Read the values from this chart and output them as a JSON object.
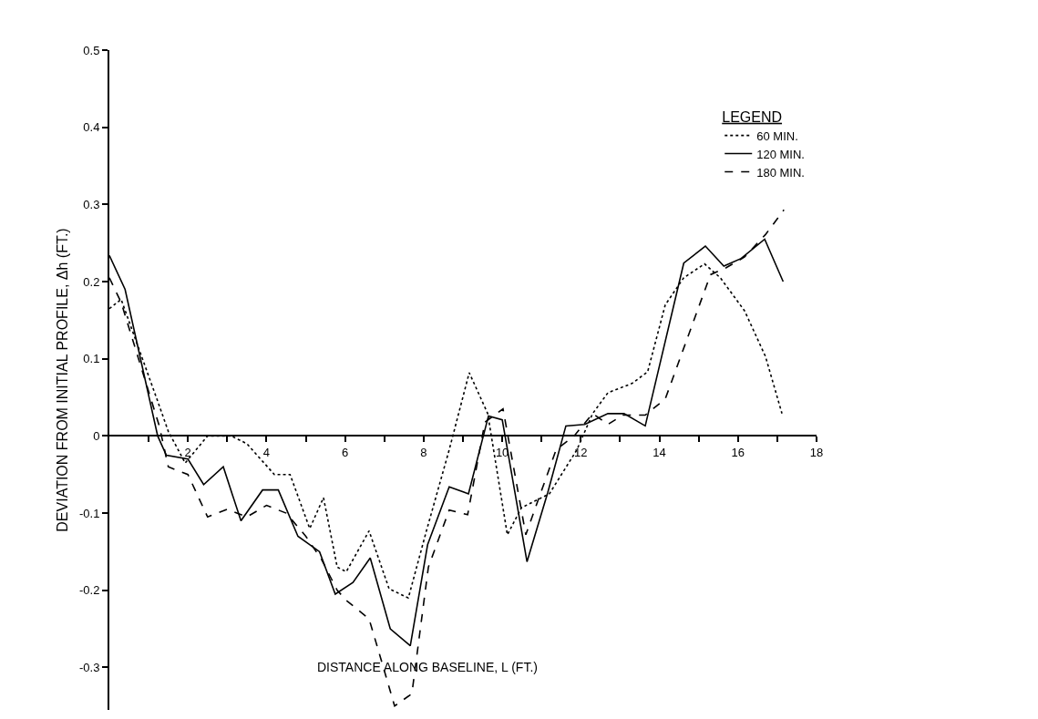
{
  "chart_data": {
    "type": "line",
    "xlabel": "DISTANCE ALONG BASELINE, L (FT.)",
    "ylabel": "DEVIATION FROM INITIAL PROFILE, Δh (FT.)",
    "legend_title": "LEGEND",
    "legend": "top right",
    "marker": "none",
    "xlim": [
      0,
      18
    ],
    "ylim": [
      -0.355,
      0.5
    ],
    "xticks": [
      {
        "value": 1,
        "label": null
      },
      2,
      {
        "value": 3,
        "label": null
      },
      4,
      {
        "value": 5,
        "label": null
      },
      6,
      {
        "value": 7,
        "label": null
      },
      8,
      {
        "value": 9,
        "label": null
      },
      10,
      {
        "value": 11,
        "label": null
      },
      12,
      {
        "value": 13,
        "label": null
      },
      14,
      {
        "value": 15,
        "label": null
      },
      16,
      {
        "value": 17,
        "label": null
      },
      18
    ],
    "yticks": [
      {
        "value": -0.3,
        "label": "-0.3"
      },
      {
        "value": -0.2,
        "label": "-0.2"
      },
      {
        "value": -0.1,
        "label": "-0.1"
      },
      0,
      {
        "value": 0.1,
        "label": "0.1"
      },
      {
        "value": 0.2,
        "label": "0.2"
      },
      {
        "value": 0.3,
        "label": "0.3"
      },
      {
        "value": 0.4,
        "label": "0.4"
      },
      {
        "value": 0.5,
        "label": "0.5"
      }
    ],
    "series": [
      {
        "name": "60 MIN.",
        "color": "#000000",
        "line_style": "dotted",
        "x": [
          0,
          0.3,
          1.23,
          1.5,
          1.93,
          2.5,
          3.1,
          3.5,
          4.2,
          4.6,
          5.1,
          5.45,
          5.8,
          6.03,
          6.61,
          7.12,
          7.61,
          8.07,
          8.65,
          9.16,
          9.63,
          10.13,
          10.49,
          11.2,
          11.9,
          12.3,
          12.69,
          13.3,
          13.7,
          14.15,
          14.62,
          15.15,
          15.55,
          16.17,
          16.7,
          17.12
        ],
        "values": [
          0.165,
          0.177,
          0.045,
          0.006,
          -0.035,
          0.0,
          0.0,
          -0.01,
          -0.05,
          -0.05,
          -0.12,
          -0.08,
          -0.17,
          -0.176,
          -0.123,
          -0.198,
          -0.21,
          -0.123,
          -0.018,
          0.082,
          0.029,
          -0.128,
          -0.093,
          -0.075,
          -0.018,
          0.029,
          0.056,
          0.068,
          0.083,
          0.17,
          0.205,
          0.223,
          0.205,
          0.162,
          0.103,
          0.029
        ]
      },
      {
        "name": "120 MIN.",
        "color": "#000000",
        "line_style": "solid",
        "x": [
          0,
          0.4,
          1.23,
          1.45,
          2.0,
          2.4,
          2.9,
          3.35,
          3.9,
          4.3,
          4.8,
          5.35,
          5.75,
          6.2,
          6.64,
          7.15,
          7.66,
          8.1,
          8.65,
          9.14,
          9.65,
          10.0,
          10.63,
          11.16,
          11.62,
          12.1,
          12.69,
          13.1,
          13.64,
          14.62,
          15.17,
          15.64,
          16.08,
          16.68,
          17.15
        ],
        "values": [
          0.234,
          0.19,
          0.0,
          -0.025,
          -0.03,
          -0.063,
          -0.04,
          -0.11,
          -0.07,
          -0.07,
          -0.13,
          -0.15,
          -0.205,
          -0.19,
          -0.158,
          -0.25,
          -0.272,
          -0.141,
          -0.066,
          -0.075,
          0.026,
          0.021,
          -0.163,
          -0.073,
          0.013,
          0.015,
          0.029,
          0.029,
          0.013,
          0.224,
          0.246,
          0.22,
          0.23,
          0.255,
          0.2
        ]
      },
      {
        "name": "180 MIN.",
        "color": "#000000",
        "line_style": "dashed",
        "x": [
          0,
          0.3,
          1.27,
          1.5,
          2.0,
          2.5,
          3.0,
          3.5,
          4.0,
          4.5,
          5.0,
          5.4,
          5.8,
          6.03,
          6.61,
          6.9,
          7.26,
          7.7,
          8.12,
          8.65,
          9.12,
          9.56,
          10.02,
          10.6,
          11.37,
          11.83,
          12.3,
          12.69,
          13.07,
          13.64,
          14.15,
          15.3,
          15.7,
          16.17,
          16.7,
          17.17
        ],
        "values": [
          0.205,
          0.173,
          0.013,
          -0.04,
          -0.05,
          -0.105,
          -0.095,
          -0.105,
          -0.09,
          -0.1,
          -0.13,
          -0.16,
          -0.2,
          -0.213,
          -0.237,
          -0.287,
          -0.35,
          -0.334,
          -0.17,
          -0.096,
          -0.102,
          0.018,
          0.035,
          -0.128,
          -0.018,
          0.0,
          0.029,
          0.015,
          0.027,
          0.027,
          0.048,
          0.209,
          0.218,
          0.232,
          0.261,
          0.293
        ]
      }
    ]
  }
}
